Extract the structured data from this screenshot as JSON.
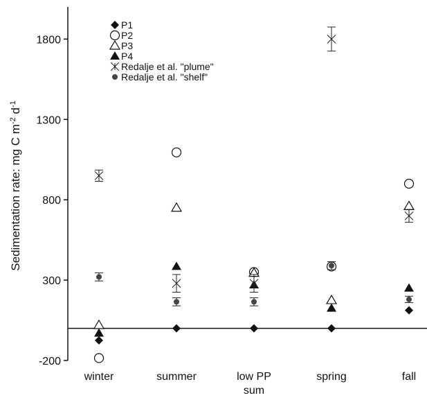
{
  "chart_data": {
    "type": "scatter",
    "ylabel_parts": [
      "Sedimentation rate: mg C  m",
      "-2",
      " d",
      "-1"
    ],
    "ylim": [
      -200,
      2000
    ],
    "yticks": [
      -200,
      300,
      800,
      1300,
      1800
    ],
    "categories": [
      {
        "label_lines": [
          "winter"
        ]
      },
      {
        "label_lines": [
          "summer"
        ]
      },
      {
        "label_lines": [
          "low PP",
          "sum"
        ]
      },
      {
        "label_lines": [
          "spring"
        ]
      },
      {
        "label_lines": [
          "fall"
        ]
      }
    ],
    "zero_line": 0,
    "series": [
      {
        "name": "P1",
        "marker": "diamond-filled",
        "values": [
          -75,
          0,
          0,
          0,
          112
        ]
      },
      {
        "name": "P2",
        "marker": "circle-open",
        "values": [
          -185,
          1095,
          350,
          385,
          900
        ]
      },
      {
        "name": "P3",
        "marker": "triangle-open",
        "values": [
          20,
          750,
          345,
          175,
          760
        ]
      },
      {
        "name": "P4",
        "marker": "triangle-filled",
        "values": [
          -30,
          385,
          270,
          125,
          250
        ]
      },
      {
        "name": "Redalje et al. \"plume\"",
        "marker": "asterisk",
        "values": [
          950,
          280,
          280,
          1800,
          700
        ],
        "errors": [
          35,
          55,
          55,
          75,
          40
        ]
      },
      {
        "name": "Redalje et al. \"shelf\"",
        "marker": "dot",
        "values": [
          320,
          165,
          165,
          390,
          180
        ],
        "errors": [
          25,
          25,
          25,
          25,
          20
        ]
      }
    ],
    "legend_position": "top-left",
    "grid": false
  }
}
